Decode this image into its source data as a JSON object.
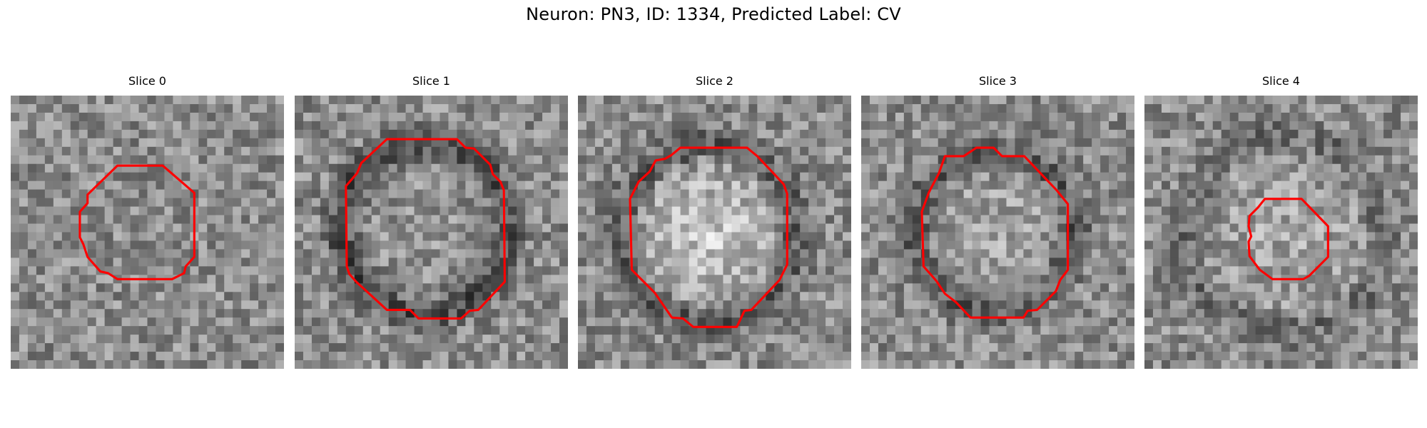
{
  "figure": {
    "title": "Neuron: PN3, ID: 1334, Predicted Label: CV"
  },
  "colors": {
    "contour": "#ff0000",
    "dark_ring": "#2e2e2e",
    "bright_core": "#e6e6e6"
  },
  "slices": [
    {
      "label": "Slice 0",
      "ring": "none",
      "core": "none"
    },
    {
      "label": "Slice 1",
      "ring": "strong",
      "core": "mid"
    },
    {
      "label": "Slice 2",
      "ring": "medium",
      "core": "bright"
    },
    {
      "label": "Slice 3",
      "ring": "medium",
      "core": "light"
    },
    {
      "label": "Slice 4",
      "ring": "faint",
      "core": "light"
    }
  ]
}
